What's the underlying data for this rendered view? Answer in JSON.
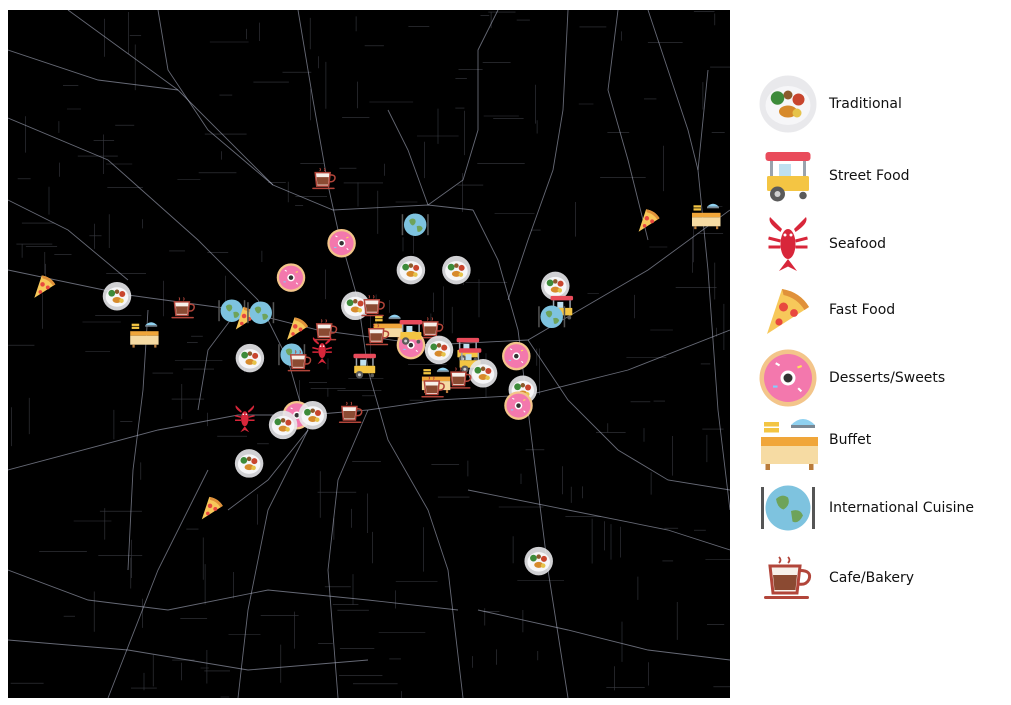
{
  "legend": {
    "items": [
      {
        "key": "traditional",
        "label": "Traditional",
        "icon": "traditional-plate-icon"
      },
      {
        "key": "street",
        "label": "Street Food",
        "icon": "street-cart-icon"
      },
      {
        "key": "seafood",
        "label": "Seafood",
        "icon": "lobster-icon"
      },
      {
        "key": "fastfood",
        "label": "Fast Food",
        "icon": "pizza-slice-icon"
      },
      {
        "key": "dessert",
        "label": "Desserts/Sweets",
        "icon": "donut-icon"
      },
      {
        "key": "buffet",
        "label": "Buffet",
        "icon": "buffet-table-icon"
      },
      {
        "key": "international",
        "label": "International Cuisine",
        "icon": "globe-cutlery-icon"
      },
      {
        "key": "cafe",
        "label": "Cafe/Bakery",
        "icon": "coffee-cup-icon"
      }
    ]
  },
  "map": {
    "background": "#000000",
    "road_color": "#b9bfd6",
    "markers": [
      {
        "cat": "cafe",
        "x": 0.438,
        "y": 0.245
      },
      {
        "cat": "fastfood",
        "x": 0.888,
        "y": 0.305
      },
      {
        "cat": "buffet",
        "x": 0.966,
        "y": 0.297
      },
      {
        "cat": "international",
        "x": 0.564,
        "y": 0.312
      },
      {
        "cat": "dessert",
        "x": 0.462,
        "y": 0.339
      },
      {
        "cat": "dessert",
        "x": 0.392,
        "y": 0.389
      },
      {
        "cat": "traditional",
        "x": 0.558,
        "y": 0.378
      },
      {
        "cat": "traditional",
        "x": 0.621,
        "y": 0.378
      },
      {
        "cat": "fastfood",
        "x": 0.051,
        "y": 0.401
      },
      {
        "cat": "traditional",
        "x": 0.151,
        "y": 0.416
      },
      {
        "cat": "cafe",
        "x": 0.243,
        "y": 0.433
      },
      {
        "cat": "international",
        "x": 0.31,
        "y": 0.437
      },
      {
        "cat": "fastfood",
        "x": 0.33,
        "y": 0.447
      },
      {
        "cat": "international",
        "x": 0.35,
        "y": 0.44
      },
      {
        "cat": "traditional",
        "x": 0.481,
        "y": 0.43
      },
      {
        "cat": "cafe",
        "x": 0.506,
        "y": 0.43
      },
      {
        "cat": "traditional",
        "x": 0.758,
        "y": 0.401
      },
      {
        "cat": "street",
        "x": 0.767,
        "y": 0.433
      },
      {
        "cat": "international",
        "x": 0.753,
        "y": 0.446
      },
      {
        "cat": "buffet",
        "x": 0.188,
        "y": 0.469
      },
      {
        "cat": "fastfood",
        "x": 0.401,
        "y": 0.462
      },
      {
        "cat": "cafe",
        "x": 0.44,
        "y": 0.465
      },
      {
        "cat": "buffet",
        "x": 0.525,
        "y": 0.458
      },
      {
        "cat": "cafe",
        "x": 0.587,
        "y": 0.462
      },
      {
        "cat": "dessert",
        "x": 0.558,
        "y": 0.487
      },
      {
        "cat": "traditional",
        "x": 0.597,
        "y": 0.494
      },
      {
        "cat": "street",
        "x": 0.637,
        "y": 0.494
      },
      {
        "cat": "street",
        "x": 0.558,
        "y": 0.468
      },
      {
        "cat": "cafe",
        "x": 0.512,
        "y": 0.472
      },
      {
        "cat": "traditional",
        "x": 0.335,
        "y": 0.506
      },
      {
        "cat": "international",
        "x": 0.393,
        "y": 0.501
      },
      {
        "cat": "seafood",
        "x": 0.435,
        "y": 0.495
      },
      {
        "cat": "cafe",
        "x": 0.404,
        "y": 0.51
      },
      {
        "cat": "street",
        "x": 0.494,
        "y": 0.517
      },
      {
        "cat": "dessert",
        "x": 0.704,
        "y": 0.503
      },
      {
        "cat": "street",
        "x": 0.64,
        "y": 0.509
      },
      {
        "cat": "traditional",
        "x": 0.658,
        "y": 0.528
      },
      {
        "cat": "cafe",
        "x": 0.626,
        "y": 0.535
      },
      {
        "cat": "buffet",
        "x": 0.592,
        "y": 0.535
      },
      {
        "cat": "cafe",
        "x": 0.589,
        "y": 0.548
      },
      {
        "cat": "traditional",
        "x": 0.713,
        "y": 0.552
      },
      {
        "cat": "dessert",
        "x": 0.707,
        "y": 0.575
      },
      {
        "cat": "seafood",
        "x": 0.328,
        "y": 0.594
      },
      {
        "cat": "dessert",
        "x": 0.4,
        "y": 0.589
      },
      {
        "cat": "traditional",
        "x": 0.422,
        "y": 0.589
      },
      {
        "cat": "cafe",
        "x": 0.475,
        "y": 0.585
      },
      {
        "cat": "traditional",
        "x": 0.381,
        "y": 0.603
      },
      {
        "cat": "traditional",
        "x": 0.334,
        "y": 0.659
      },
      {
        "cat": "fastfood",
        "x": 0.283,
        "y": 0.723
      },
      {
        "cat": "traditional",
        "x": 0.735,
        "y": 0.801
      }
    ]
  }
}
